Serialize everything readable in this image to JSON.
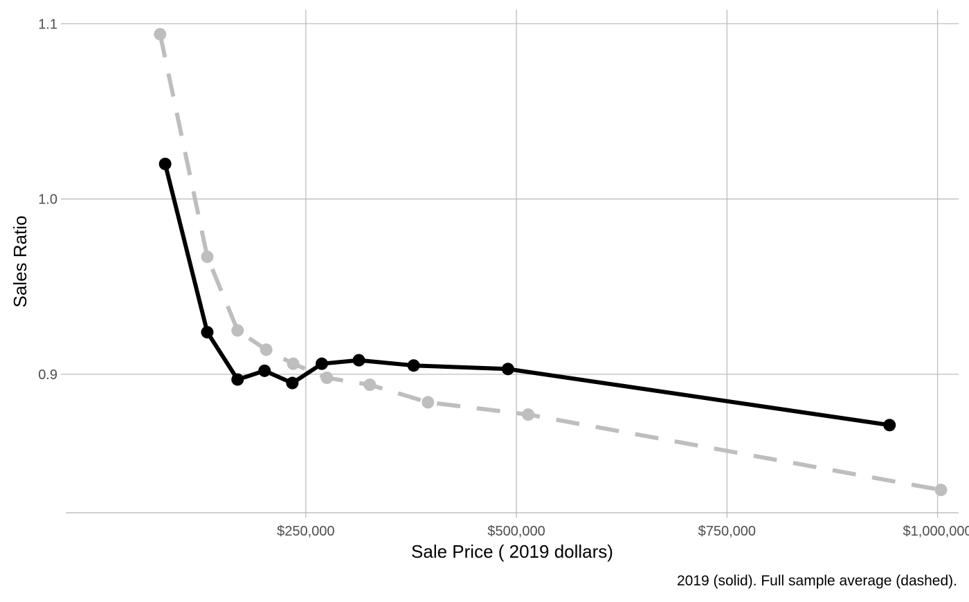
{
  "chart_data": {
    "type": "line",
    "xlabel": "Sale Price ( 2019 dollars)",
    "ylabel": "Sales Ratio",
    "caption": "2019 (solid). Full sample average (dashed).",
    "xlim": [
      -35000,
      1025000
    ],
    "ylim": [
      0.821,
      1.108
    ],
    "x_ticks": [
      250000,
      500000,
      750000,
      1000000
    ],
    "x_tick_labels": [
      "$250,000",
      "$500,000",
      "$750,000",
      "$1,000,000"
    ],
    "y_ticks": [
      0.9,
      1.0,
      1.1
    ],
    "y_tick_labels": [
      "0.9",
      "1.0",
      "1.1"
    ],
    "grid": true,
    "series": [
      {
        "style": "solid",
        "color": "#000000",
        "x": [
          83000,
          133000,
          169000,
          201000,
          234000,
          269000,
          313000,
          378000,
          490000,
          943000
        ],
        "y": [
          1.02,
          0.924,
          0.897,
          0.902,
          0.895,
          0.906,
          0.908,
          0.905,
          0.903,
          0.871
        ]
      },
      {
        "style": "dashed",
        "color": "#bebebe",
        "x": [
          77000,
          133000,
          169000,
          203000,
          235000,
          275000,
          326000,
          395000,
          514000,
          1004000
        ],
        "y": [
          1.094,
          0.967,
          0.925,
          0.914,
          0.906,
          0.898,
          0.894,
          0.884,
          0.877,
          0.834
        ]
      }
    ]
  }
}
